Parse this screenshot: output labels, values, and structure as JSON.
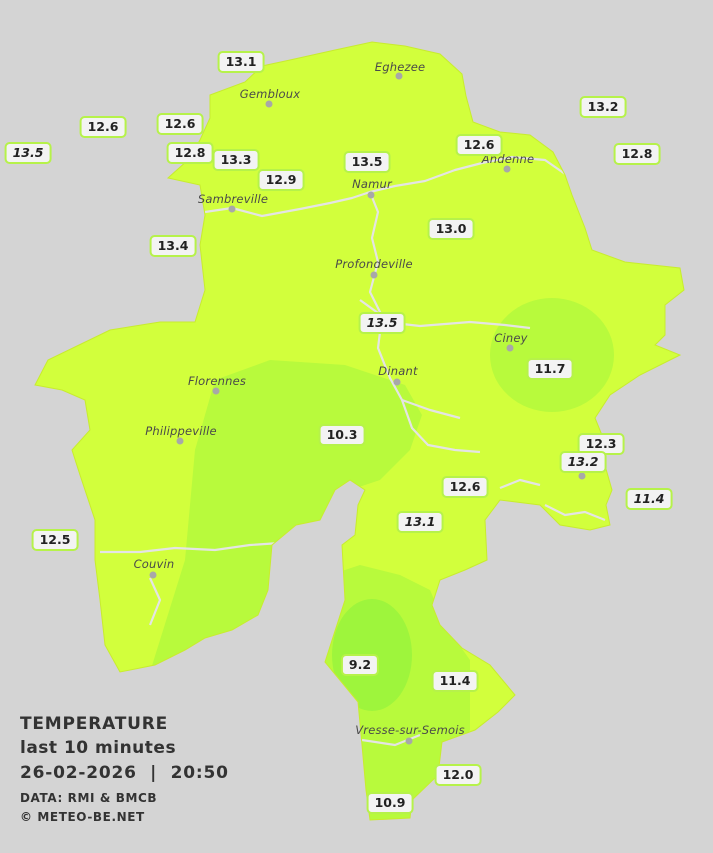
{
  "legend": {
    "title": "TEMPERATURE",
    "period": "last 10 minutes",
    "datetime": "26-02-2026  |  20:50",
    "data_source": "DATA: RMI & BMCB",
    "copyright": "© METEO-BE.NET"
  },
  "colors": {
    "background": "#d4d4d4",
    "warm_zone": "#d2ff3c",
    "mid_zone": "#b8fa3c",
    "cool_zone": "#9ef53c",
    "river": "#e6e6e6",
    "label_border": "#b6f24a"
  },
  "towns": [
    {
      "name": "Eghezee"
    },
    {
      "name": "Gembloux"
    },
    {
      "name": "Andenne"
    },
    {
      "name": "Namur"
    },
    {
      "name": "Sambreville"
    },
    {
      "name": "Profondeville"
    },
    {
      "name": "Ciney"
    },
    {
      "name": "Dinant"
    },
    {
      "name": "Florennes"
    },
    {
      "name": "Philippeville"
    },
    {
      "name": "Couvin"
    },
    {
      "name": "Vresse-sur-Semois"
    }
  ],
  "temperatures": [
    {
      "value": "13.1",
      "italic": false
    },
    {
      "value": "12.6",
      "italic": false
    },
    {
      "value": "12.6",
      "italic": false
    },
    {
      "value": "13.5",
      "italic": true
    },
    {
      "value": "12.8",
      "italic": false
    },
    {
      "value": "13.3",
      "italic": false
    },
    {
      "value": "12.9",
      "italic": false
    },
    {
      "value": "13.5",
      "italic": false
    },
    {
      "value": "12.6",
      "italic": false
    },
    {
      "value": "13.2",
      "italic": false
    },
    {
      "value": "12.8",
      "italic": false
    },
    {
      "value": "13.0",
      "italic": false
    },
    {
      "value": "13.4",
      "italic": false
    },
    {
      "value": "13.5",
      "italic": true
    },
    {
      "value": "11.7",
      "italic": false
    },
    {
      "value": "10.3",
      "italic": false
    },
    {
      "value": "12.3",
      "italic": false
    },
    {
      "value": "13.2",
      "italic": true
    },
    {
      "value": "12.6",
      "italic": false
    },
    {
      "value": "11.4",
      "italic": true
    },
    {
      "value": "13.1",
      "italic": true
    },
    {
      "value": "12.5",
      "italic": false
    },
    {
      "value": "9.2",
      "italic": false
    },
    {
      "value": "11.4",
      "italic": false
    },
    {
      "value": "12.0",
      "italic": false
    },
    {
      "value": "10.9",
      "italic": false
    }
  ]
}
